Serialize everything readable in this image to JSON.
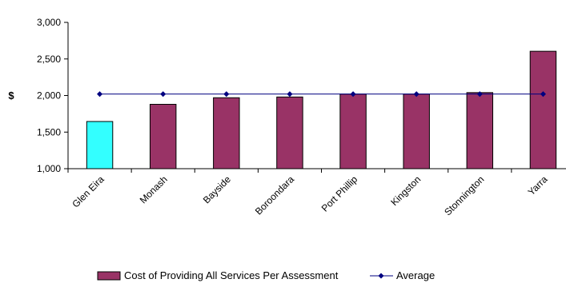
{
  "chart_data": {
    "type": "bar",
    "title": "",
    "xlabel": "",
    "ylabel": "$",
    "ylim": [
      1000,
      3000
    ],
    "yticks": [
      1000,
      1500,
      2000,
      2500,
      3000
    ],
    "ytick_labels": [
      "1,000",
      "1,500",
      "2,000",
      "2,500",
      "3,000"
    ],
    "categories": [
      "Glen Eira",
      "Monash",
      "Bayside",
      "Boroondara",
      "Port Phillip",
      "Kingston",
      "Stonnington",
      "Yarra"
    ],
    "series": [
      {
        "name": "Cost of Providing All Services Per Assessment",
        "kind": "bar",
        "values": [
          1645,
          1880,
          1970,
          1980,
          2020,
          2020,
          2040,
          2605
        ],
        "color": "#993366",
        "highlight": {
          "index": 0,
          "color": "#33ffff"
        }
      },
      {
        "name": "Average",
        "kind": "line",
        "values": [
          2020,
          2020,
          2020,
          2020,
          2020,
          2020,
          2020,
          2020
        ],
        "color": "#000080"
      }
    ],
    "grid": false,
    "legend": "bottom"
  }
}
